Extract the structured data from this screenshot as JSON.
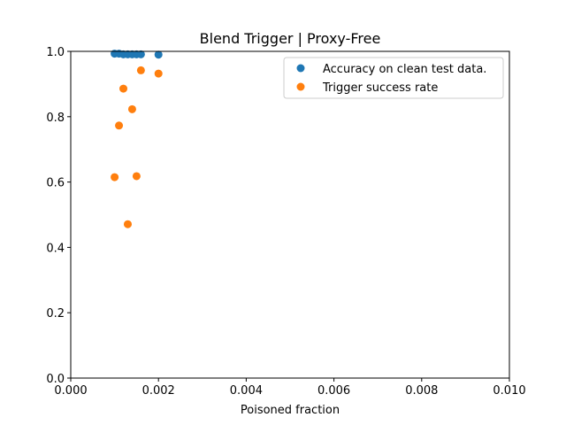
{
  "chart_data": {
    "type": "scatter",
    "title": "Blend Trigger | Proxy-Free",
    "xlabel": "Poisoned fraction",
    "ylabel": "",
    "xlim": [
      0,
      0.01
    ],
    "ylim": [
      0,
      1.0
    ],
    "xticks": [
      "0.000",
      "0.002",
      "0.004",
      "0.006",
      "0.008",
      "0.010"
    ],
    "yticks": [
      "0.0",
      "0.2",
      "0.4",
      "0.6",
      "0.8",
      "1.0"
    ],
    "grid": false,
    "legend_position": "top-right",
    "series": [
      {
        "name": "Accuracy on clean test data.",
        "color": "#1f77b4",
        "points": [
          {
            "x": 0.001,
            "y": 0.993
          },
          {
            "x": 0.0011,
            "y": 0.993
          },
          {
            "x": 0.0012,
            "y": 0.991
          },
          {
            "x": 0.0013,
            "y": 0.991
          },
          {
            "x": 0.0014,
            "y": 0.991
          },
          {
            "x": 0.0015,
            "y": 0.991
          },
          {
            "x": 0.0016,
            "y": 0.991
          },
          {
            "x": 0.002,
            "y": 0.99
          }
        ]
      },
      {
        "name": "Trigger success rate",
        "color": "#ff7f0e",
        "points": [
          {
            "x": 0.001,
            "y": 0.615
          },
          {
            "x": 0.0011,
            "y": 0.773
          },
          {
            "x": 0.0012,
            "y": 0.886
          },
          {
            "x": 0.0013,
            "y": 0.471
          },
          {
            "x": 0.0014,
            "y": 0.823
          },
          {
            "x": 0.0015,
            "y": 0.618
          },
          {
            "x": 0.0016,
            "y": 0.942
          },
          {
            "x": 0.002,
            "y": 0.932
          }
        ]
      }
    ]
  }
}
